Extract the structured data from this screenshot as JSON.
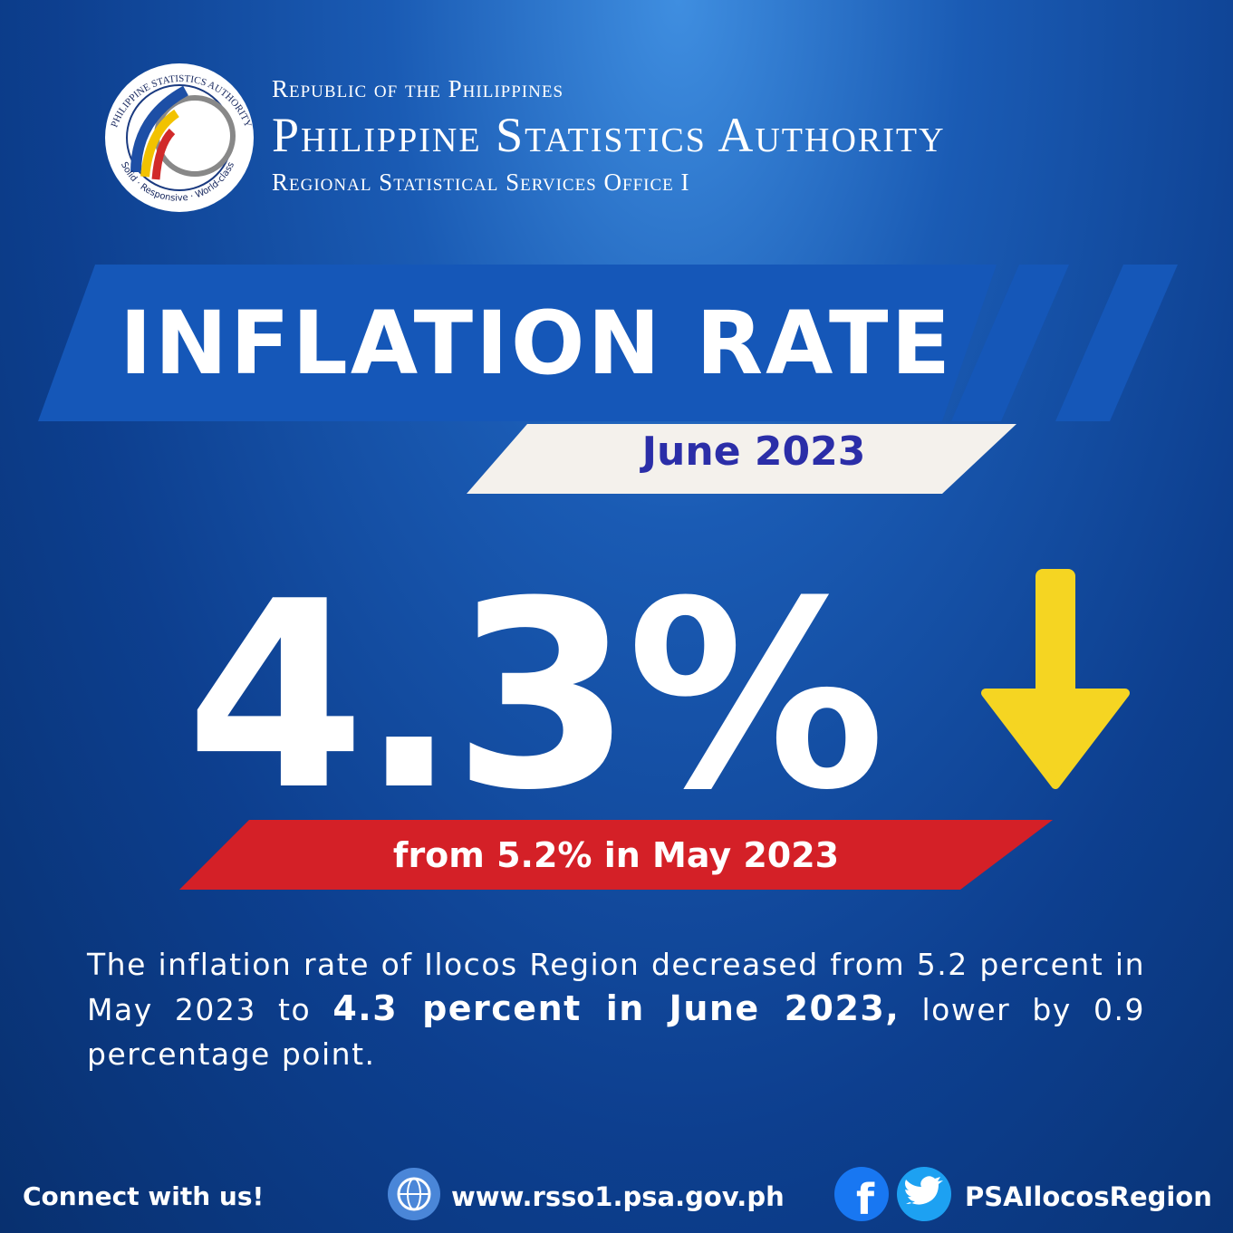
{
  "header": {
    "republic": "Republic of the Philippines",
    "agency": "Philippine Statistics Authority",
    "office": "Regional Statistical Services Office I"
  },
  "logo": {
    "ring_top": "PHILIPPINE STATISTICS AUTHORITY",
    "ring_bottom": "Solid · Responsive · World-class"
  },
  "title": "INFLATION RATE",
  "period": "June 2023",
  "headline": "4.3%",
  "comparison": "from 5.2% in May 2023",
  "body": {
    "text_before": "The inflation rate of Ilocos Region decreased from 5.2 percent in May 2023 to ",
    "text_bold": "4.3 percent in June 2023,",
    "text_after": " lower by 0.9 percentage point."
  },
  "footer": {
    "connect": "Connect with us!",
    "website": "www.rsso1.psa.gov.ph",
    "social": "PSAIlocosRegion"
  }
}
